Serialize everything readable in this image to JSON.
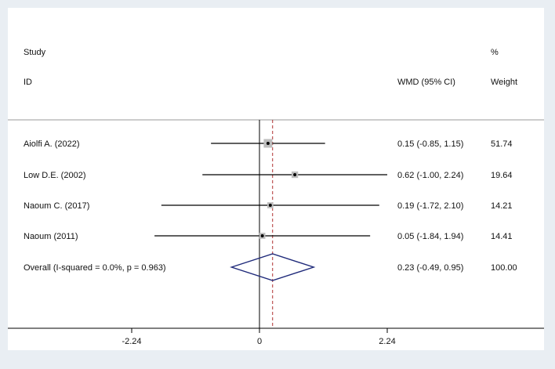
{
  "chart_data": {
    "type": "forest",
    "headers": {
      "study_line1": "Study",
      "study_line2": "ID",
      "effect": "WMD (95% CI)",
      "weight_line1": "%",
      "weight_line2": "Weight"
    },
    "studies": [
      {
        "label": "Aiolfi A. (2022)",
        "estimate": 0.15,
        "lower": -0.85,
        "upper": 1.15,
        "ci_text": "0.15 (-0.85, 1.15)",
        "weight": "51.74"
      },
      {
        "label": "Low D.E. (2002)",
        "estimate": 0.62,
        "lower": -1.0,
        "upper": 2.24,
        "ci_text": "0.62 (-1.00, 2.24)",
        "weight": "19.64"
      },
      {
        "label": "Naoum C. (2017)",
        "estimate": 0.19,
        "lower": -1.72,
        "upper": 2.1,
        "ci_text": "0.19 (-1.72, 2.10)",
        "weight": "14.21"
      },
      {
        "label": "Naoum  (2011)",
        "estimate": 0.05,
        "lower": -1.84,
        "upper": 1.94,
        "ci_text": "0.05 (-1.84, 1.94)",
        "weight": "14.41"
      }
    ],
    "overall": {
      "label": "Overall  (I-squared = 0.0%, p = 0.963)",
      "estimate": 0.23,
      "lower": -0.49,
      "upper": 0.95,
      "ci_text": "0.23 (-0.49, 0.95)",
      "weight": "100.00"
    },
    "x_ticks": [
      -2.24,
      0,
      2.24
    ],
    "x_tick_labels": [
      "-2.24",
      "0",
      "2.24"
    ],
    "xlim": [
      -2.24,
      2.24
    ],
    "null_value": 0,
    "colors": {
      "ci_line": "#000000",
      "weight_box": "#bdbdbd",
      "point": "#000000",
      "diamond": "#1f2a7a",
      "overall_line": "#b03030"
    }
  }
}
